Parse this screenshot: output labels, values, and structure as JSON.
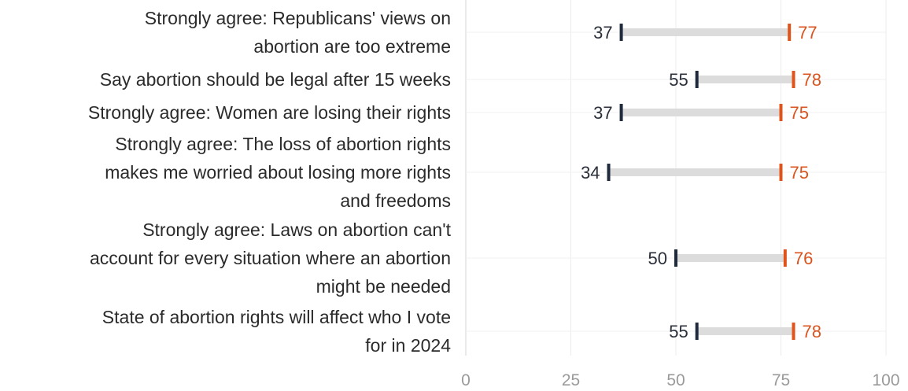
{
  "chart_data": {
    "type": "dumbbell",
    "xlim": [
      0,
      100
    ],
    "xticks": [
      "0",
      "25",
      "50",
      "75",
      "100"
    ],
    "grid": true,
    "colors": {
      "left": "#1f2a3c",
      "right": "#e0541c",
      "connector": "#dcdcdc"
    },
    "rows": [
      {
        "lines": [
          "Strongly agree: Republicans' views on",
          "abortion are too extreme"
        ],
        "left": 37,
        "right": 77
      },
      {
        "lines": [
          "Say abortion should be legal after 15 weeks"
        ],
        "left": 55,
        "right": 78
      },
      {
        "lines": [
          "Strongly agree: Women are losing their rights"
        ],
        "left": 37,
        "right": 75
      },
      {
        "lines": [
          "Strongly agree: The loss of abortion rights",
          "makes me worried about losing more rights",
          "and freedoms"
        ],
        "left": 34,
        "right": 75
      },
      {
        "lines": [
          "Strongly agree: Laws on abortion can't",
          "account for every situation where an abortion",
          "might be needed"
        ],
        "left": 50,
        "right": 76
      },
      {
        "lines": [
          "State of abortion rights will affect who I vote",
          "for in 2024"
        ],
        "left": 55,
        "right": 78
      }
    ]
  }
}
